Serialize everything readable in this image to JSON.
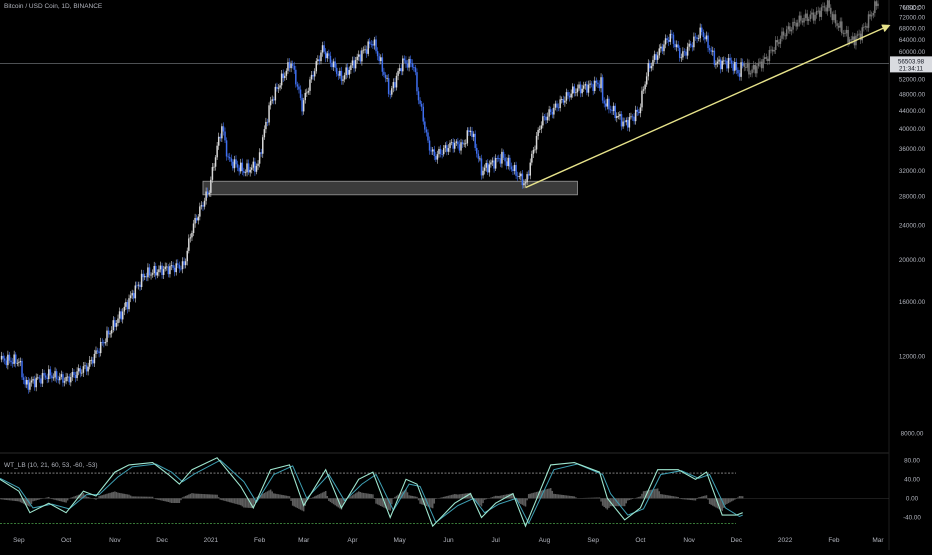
{
  "header": {
    "symbol_title": "Bitcoin / USD Coin, 1D, BINANCE",
    "indicator_title": "WT_LB (10, 21, 60, 53, -60, -53)",
    "currency": "USDC"
  },
  "price_label": {
    "value": "56503.98",
    "countdown": "21:34:11"
  },
  "colors": {
    "background": "#000000",
    "up_candle": "#d9d9d9",
    "down_candle": "#3f6ff0",
    "projection": "#7a7a7a",
    "trendline": "#e6e28a",
    "support_zone": "#6b6b6b",
    "wt1": "#9ee6cf",
    "wt2": "#3e9fb3",
    "histogram": "#5d5d5d",
    "ob_level": "#c8c8c8",
    "os_level": "#59c25a"
  },
  "chart_data": [
    {
      "type": "candlestick",
      "title": "Bitcoin / USD Coin, 1D, BINANCE",
      "xlabel": "",
      "ylabel": "",
      "scale": "log",
      "ylim": [
        7200,
        79000
      ],
      "x_start": "2020-08-20",
      "x_end": "2022-03-08",
      "x_ticks": [
        {
          "date": "2020-09-01",
          "label": "Sep"
        },
        {
          "date": "2020-10-01",
          "label": "Oct"
        },
        {
          "date": "2020-11-01",
          "label": "Nov"
        },
        {
          "date": "2020-12-01",
          "label": "Dec"
        },
        {
          "date": "2021-01-01",
          "label": "2021"
        },
        {
          "date": "2021-02-01",
          "label": "Feb"
        },
        {
          "date": "2021-03-01",
          "label": "Mar"
        },
        {
          "date": "2021-04-01",
          "label": "Apr"
        },
        {
          "date": "2021-05-01",
          "label": "May"
        },
        {
          "date": "2021-06-01",
          "label": "Jun"
        },
        {
          "date": "2021-07-01",
          "label": "Jul"
        },
        {
          "date": "2021-08-01",
          "label": "Aug"
        },
        {
          "date": "2021-09-01",
          "label": "Sep"
        },
        {
          "date": "2021-10-01",
          "label": "Oct"
        },
        {
          "date": "2021-11-01",
          "label": "Nov"
        },
        {
          "date": "2021-12-01",
          "label": "Dec"
        },
        {
          "date": "2022-01-01",
          "label": "2022"
        },
        {
          "date": "2022-02-01",
          "label": "Feb"
        },
        {
          "date": "2022-03-01",
          "label": "Mar"
        }
      ],
      "y_ticks": [
        8000,
        12000,
        16000,
        20000,
        24000,
        28000,
        32000,
        36000,
        40000,
        44000,
        48000,
        52000,
        56000,
        60000,
        64000,
        68000,
        72000,
        76000
      ],
      "y_tick_labels": [
        "8000.00",
        "12000.00",
        "16000.00",
        "20000.00",
        "24000.00",
        "28000.00",
        "32000.00",
        "36000.00",
        "40000.00",
        "44000.00",
        "48000.00",
        "52000.00",
        "56000.00",
        "60000.00",
        "64000.00",
        "68000.00",
        "72000.00",
        "76000.00"
      ],
      "series": [
        {
          "style": "close-path",
          "points": [
            [
              "2020-08-20",
              11800
            ],
            [
              "2020-09-01",
              11700
            ],
            [
              "2020-09-05",
              10300
            ],
            [
              "2020-09-20",
              10900
            ],
            [
              "2020-10-01",
              10600
            ],
            [
              "2020-10-15",
              11400
            ],
            [
              "2020-10-25",
              13000
            ],
            [
              "2020-11-05",
              15000
            ],
            [
              "2020-11-20",
              18500
            ],
            [
              "2020-12-01",
              19000
            ],
            [
              "2020-12-15",
              19400
            ],
            [
              "2020-12-20",
              23500
            ],
            [
              "2020-12-31",
              29000
            ],
            [
              "2021-01-08",
              40500
            ],
            [
              "2021-01-12",
              34000
            ],
            [
              "2021-01-22",
              32000
            ],
            [
              "2021-01-31",
              33000
            ],
            [
              "2021-02-08",
              46000
            ],
            [
              "2021-02-21",
              57000
            ],
            [
              "2021-02-28",
              45000
            ],
            [
              "2021-03-13",
              61000
            ],
            [
              "2021-03-25",
              52000
            ],
            [
              "2021-04-05",
              58500
            ],
            [
              "2021-04-14",
              63500
            ],
            [
              "2021-04-25",
              48000
            ],
            [
              "2021-05-03",
              57000
            ],
            [
              "2021-05-10",
              56000
            ],
            [
              "2021-05-12",
              49000
            ],
            [
              "2021-05-19",
              37000
            ],
            [
              "2021-05-23",
              34500
            ],
            [
              "2021-06-04",
              37000
            ],
            [
              "2021-06-10",
              36500
            ],
            [
              "2021-06-15",
              40000
            ],
            [
              "2021-06-22",
              32000
            ],
            [
              "2021-07-05",
              34500
            ],
            [
              "2021-07-20",
              29800
            ],
            [
              "2021-07-30",
              41500
            ],
            [
              "2021-08-14",
              47000
            ],
            [
              "2021-08-20",
              49000
            ],
            [
              "2021-09-06",
              51000
            ],
            [
              "2021-09-07",
              46500
            ],
            [
              "2021-09-21",
              41000
            ],
            [
              "2021-09-30",
              43800
            ],
            [
              "2021-10-06",
              55000
            ],
            [
              "2021-10-20",
              65500
            ],
            [
              "2021-10-27",
              58500
            ],
            [
              "2021-11-09",
              67000
            ],
            [
              "2021-11-18",
              56500
            ],
            [
              "2021-11-27",
              57000
            ],
            [
              "2021-12-03",
              53500
            ],
            [
              "2021-12-05",
              56503.98
            ]
          ]
        },
        {
          "style": "projection",
          "points": [
            [
              "2021-12-05",
              56500
            ],
            [
              "2021-12-10",
              54000
            ],
            [
              "2021-12-20",
              58000
            ],
            [
              "2021-12-31",
              66000
            ],
            [
              "2022-01-10",
              71000
            ],
            [
              "2022-01-20",
              73000
            ],
            [
              "2022-01-28",
              77000
            ],
            [
              "2022-02-01",
              71000
            ],
            [
              "2022-02-12",
              63500
            ],
            [
              "2022-02-18",
              66000
            ],
            [
              "2022-02-22",
              70000
            ],
            [
              "2022-03-01",
              78500
            ]
          ]
        }
      ],
      "annotations": [
        {
          "type": "zone",
          "from": "2020-12-27",
          "to": "2021-08-22",
          "y_low": 28200,
          "y_high": 30300
        },
        {
          "type": "trendline",
          "from": [
            "2021-07-20",
            29300
          ],
          "to": [
            "2022-03-08",
            69000
          ]
        },
        {
          "type": "hline",
          "y": 56503.98
        }
      ]
    },
    {
      "type": "line",
      "title": "WT_LB (10, 21, 60, 53, -60, -53)",
      "xlabel": "",
      "ylabel": "",
      "ylim": [
        -62,
        95
      ],
      "y_ticks": [
        80,
        40,
        0,
        -40
      ],
      "y_tick_labels": [
        "80.00",
        "40.00",
        "0.00",
        "-40.00"
      ],
      "levels": [
        53,
        -53
      ],
      "series": [
        {
          "name": "",
          "points": [
            [
              "2020-08-20",
              40
            ],
            [
              "2020-09-01",
              15
            ],
            [
              "2020-09-08",
              -30
            ],
            [
              "2020-09-20",
              -10
            ],
            [
              "2020-10-01",
              -30
            ],
            [
              "2020-10-12",
              15
            ],
            [
              "2020-10-20",
              5
            ],
            [
              "2020-11-01",
              55
            ],
            [
              "2020-11-10",
              70
            ],
            [
              "2020-11-25",
              75
            ],
            [
              "2020-12-05",
              50
            ],
            [
              "2020-12-12",
              30
            ],
            [
              "2020-12-20",
              60
            ],
            [
              "2021-01-05",
              85
            ],
            [
              "2021-01-20",
              25
            ],
            [
              "2021-01-28",
              -20
            ],
            [
              "2021-02-08",
              60
            ],
            [
              "2021-02-20",
              70
            ],
            [
              "2021-03-01",
              -15
            ],
            [
              "2021-03-15",
              60
            ],
            [
              "2021-03-25",
              -20
            ],
            [
              "2021-04-05",
              40
            ],
            [
              "2021-04-14",
              55
            ],
            [
              "2021-04-25",
              -40
            ],
            [
              "2021-05-05",
              40
            ],
            [
              "2021-05-12",
              30
            ],
            [
              "2021-05-22",
              -58
            ],
            [
              "2021-06-05",
              -10
            ],
            [
              "2021-06-15",
              10
            ],
            [
              "2021-06-22",
              -40
            ],
            [
              "2021-07-01",
              -10
            ],
            [
              "2021-07-12",
              10
            ],
            [
              "2021-07-20",
              -58
            ],
            [
              "2021-08-05",
              70
            ],
            [
              "2021-08-20",
              75
            ],
            [
              "2021-09-05",
              55
            ],
            [
              "2021-09-10",
              0
            ],
            [
              "2021-09-21",
              -45
            ],
            [
              "2021-10-01",
              -20
            ],
            [
              "2021-10-12",
              60
            ],
            [
              "2021-10-25",
              60
            ],
            [
              "2021-11-05",
              40
            ],
            [
              "2021-11-12",
              55
            ],
            [
              "2021-11-22",
              -35
            ],
            [
              "2021-12-01",
              -35
            ],
            [
              "2021-12-05",
              -30
            ]
          ]
        },
        {
          "name": "",
          "points": [
            [
              "2020-08-20",
              42
            ],
            [
              "2020-09-01",
              22
            ],
            [
              "2020-09-10",
              -20
            ],
            [
              "2020-09-22",
              -12
            ],
            [
              "2020-10-03",
              -22
            ],
            [
              "2020-10-14",
              8
            ],
            [
              "2020-10-22",
              8
            ],
            [
              "2020-11-03",
              45
            ],
            [
              "2020-11-12",
              66
            ],
            [
              "2020-11-27",
              72
            ],
            [
              "2020-12-07",
              55
            ],
            [
              "2020-12-14",
              35
            ],
            [
              "2020-12-22",
              52
            ],
            [
              "2021-01-07",
              80
            ],
            [
              "2021-01-22",
              35
            ],
            [
              "2021-01-30",
              -8
            ],
            [
              "2021-02-10",
              50
            ],
            [
              "2021-02-22",
              68
            ],
            [
              "2021-03-03",
              0
            ],
            [
              "2021-03-17",
              50
            ],
            [
              "2021-03-27",
              -5
            ],
            [
              "2021-04-07",
              30
            ],
            [
              "2021-04-16",
              50
            ],
            [
              "2021-04-27",
              -25
            ],
            [
              "2021-05-07",
              30
            ],
            [
              "2021-05-14",
              25
            ],
            [
              "2021-05-24",
              -50
            ],
            [
              "2021-06-07",
              -15
            ],
            [
              "2021-06-17",
              0
            ],
            [
              "2021-06-24",
              -30
            ],
            [
              "2021-07-03",
              -12
            ],
            [
              "2021-07-14",
              0
            ],
            [
              "2021-07-22",
              -52
            ],
            [
              "2021-08-07",
              60
            ],
            [
              "2021-08-22",
              72
            ],
            [
              "2021-09-07",
              50
            ],
            [
              "2021-09-12",
              10
            ],
            [
              "2021-09-23",
              -35
            ],
            [
              "2021-10-03",
              -22
            ],
            [
              "2021-10-14",
              50
            ],
            [
              "2021-10-27",
              58
            ],
            [
              "2021-11-07",
              42
            ],
            [
              "2021-11-14",
              50
            ],
            [
              "2021-11-24",
              -20
            ],
            [
              "2021-12-03",
              -38
            ],
            [
              "2021-12-05",
              -35
            ]
          ]
        }
      ]
    }
  ]
}
